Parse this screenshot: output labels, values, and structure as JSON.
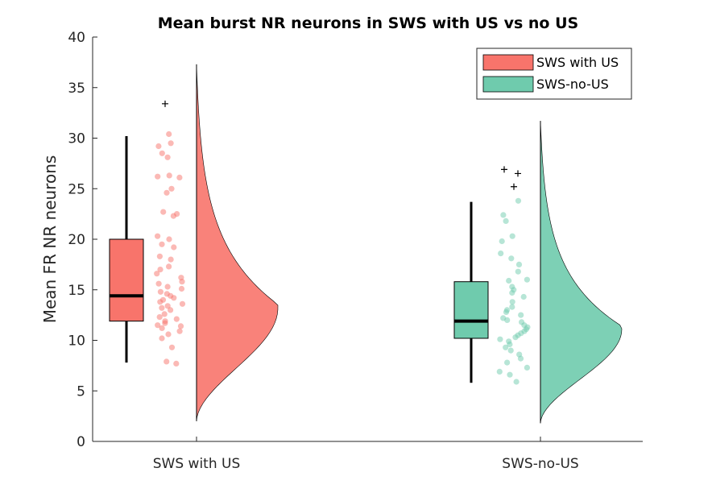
{
  "chart_data": {
    "type": "raincloud",
    "title": "Mean burst NR neurons in SWS with US vs no US",
    "ylabel": "Mean FR NR neurons",
    "xlabel": "",
    "ylim": [
      0,
      40
    ],
    "yticks": [
      "0",
      "5",
      "10",
      "15",
      "20",
      "25",
      "30",
      "35",
      "40"
    ],
    "categories": [
      "SWS with US",
      "SWS-no-US"
    ],
    "legend_position": "top-right",
    "series": [
      {
        "name": "SWS with US",
        "color": "#f8746b",
        "box": {
          "whisker_low": 7.8,
          "q1": 11.9,
          "median": 14.4,
          "q3": 20.0,
          "whisker_high": 30.2
        },
        "outliers": [
          33.4
        ],
        "density_range": [
          2.0,
          37.3
        ],
        "density_peak": 13.2,
        "points": [
          30.4,
          29.5,
          29.2,
          28.5,
          28.1,
          26.3,
          26.2,
          26.1,
          25.0,
          24.6,
          22.7,
          22.5,
          22.3,
          20.3,
          20.0,
          19.5,
          19.2,
          18.3,
          18.0,
          17.3,
          17.0,
          16.6,
          16.2,
          15.8,
          15.6,
          15.3,
          15.1,
          14.8,
          14.6,
          14.4,
          14.2,
          14.0,
          13.8,
          13.6,
          13.4,
          13.2,
          13.0,
          12.6,
          12.3,
          12.1,
          11.9,
          11.7,
          11.5,
          11.4,
          11.2,
          10.9,
          10.6,
          10.2,
          9.3,
          7.9,
          7.7
        ]
      },
      {
        "name": "SWS-no-US",
        "color": "#6fcbad",
        "box": {
          "whisker_low": 5.8,
          "q1": 10.2,
          "median": 11.9,
          "q3": 15.8,
          "whisker_high": 23.7
        },
        "outliers": [
          26.9,
          26.5,
          25.2
        ],
        "density_range": [
          1.8,
          31.7
        ],
        "density_peak": 11.1,
        "points": [
          23.8,
          22.4,
          21.8,
          20.3,
          19.8,
          18.6,
          18.1,
          17.5,
          16.8,
          16.0,
          15.9,
          15.3,
          15.0,
          14.7,
          14.3,
          13.8,
          13.3,
          13.0,
          12.8,
          12.5,
          12.2,
          12.0,
          11.8,
          11.5,
          11.3,
          11.1,
          10.9,
          10.7,
          10.5,
          10.3,
          10.1,
          9.9,
          9.6,
          9.3,
          9.0,
          8.6,
          8.2,
          7.8,
          7.3,
          6.9,
          6.6,
          5.9
        ]
      }
    ]
  }
}
